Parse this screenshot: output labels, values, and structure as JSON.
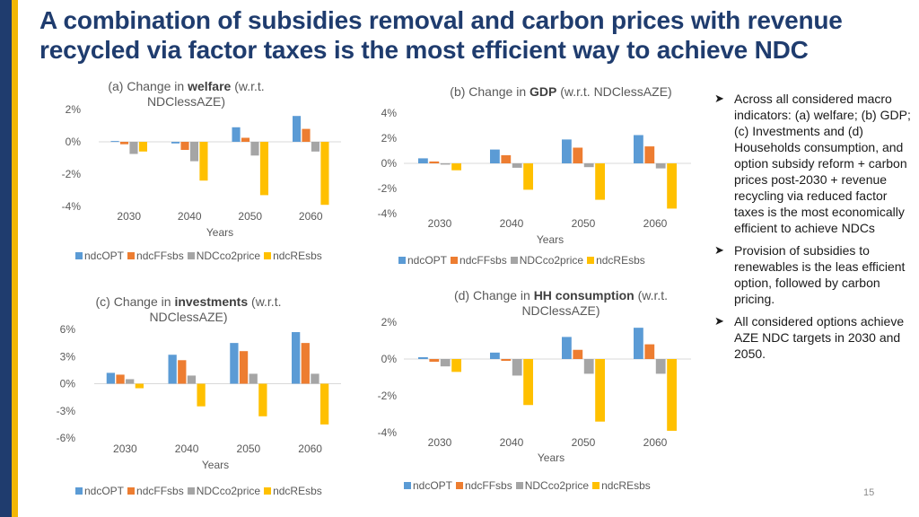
{
  "title": "A combination of subsidies removal and carbon prices with revenue recycled via factor taxes is the most efficient way to achieve NDC",
  "series_colors": {
    "ndcOPT": "#5b9bd5",
    "ndcFFsbs": "#ed7d31",
    "NDCco2price": "#a5a5a5",
    "ndcREsbs": "#ffc000"
  },
  "chart_data": [
    {
      "type": "bar",
      "title_prefix": "(a) Change in ",
      "title_bold": "welfare",
      "title_suffix": " (w.r.t. NDClessAZE)",
      "xlabel": "Years",
      "ylabel": "",
      "ylim": [
        -4,
        2
      ],
      "yticks": [
        "2%",
        "0%",
        "-2%",
        "-4%"
      ],
      "categories": [
        "2030",
        "2040",
        "2050",
        "2060"
      ],
      "series": [
        {
          "name": "ndcOPT",
          "values": [
            0.05,
            -0.1,
            0.9,
            1.6
          ]
        },
        {
          "name": "ndcFFsbs",
          "values": [
            -0.15,
            -0.5,
            0.25,
            0.8
          ]
        },
        {
          "name": "NDCco2price",
          "values": [
            -0.75,
            -1.2,
            -0.85,
            -0.6
          ]
        },
        {
          "name": "ndcREsbs",
          "values": [
            -0.6,
            -2.4,
            -3.3,
            -3.9
          ]
        }
      ],
      "legend": [
        "ndcOPT",
        "ndcFFsbs",
        "NDCco2price",
        "ndcREsbs"
      ]
    },
    {
      "type": "bar",
      "title_prefix": "(b) Change in ",
      "title_bold": "GDP",
      "title_suffix": " (w.r.t. NDClessAZE)",
      "xlabel": "Years",
      "ylabel": "",
      "ylim": [
        -4,
        4
      ],
      "yticks": [
        "4%",
        "2%",
        "0%",
        "-2%",
        "-4%"
      ],
      "categories": [
        "2030",
        "2040",
        "2050",
        "2060"
      ],
      "series": [
        {
          "name": "ndcOPT",
          "values": [
            0.4,
            1.1,
            1.9,
            2.25
          ]
        },
        {
          "name": "ndcFFsbs",
          "values": [
            0.15,
            0.65,
            1.25,
            1.35
          ]
        },
        {
          "name": "NDCco2price",
          "values": [
            -0.1,
            -0.35,
            -0.3,
            -0.4
          ]
        },
        {
          "name": "ndcREsbs",
          "values": [
            -0.55,
            -2.1,
            -2.9,
            -3.6
          ]
        }
      ],
      "legend": [
        "ndcOPT",
        "ndcFFsbs",
        "NDCco2price",
        "ndcREsbs"
      ]
    },
    {
      "type": "bar",
      "title_prefix": "(c) Change in ",
      "title_bold": "investments",
      "title_suffix": " (w.r.t. NDClessAZE)",
      "xlabel": "Years",
      "ylabel": "",
      "ylim": [
        -6,
        6
      ],
      "yticks": [
        "6%",
        "3%",
        "0%",
        "-3%",
        "-6%"
      ],
      "categories": [
        "2030",
        "2040",
        "2050",
        "2060"
      ],
      "series": [
        {
          "name": "ndcOPT",
          "values": [
            1.2,
            3.2,
            4.5,
            5.7
          ]
        },
        {
          "name": "ndcFFsbs",
          "values": [
            1.0,
            2.6,
            3.6,
            4.5
          ]
        },
        {
          "name": "NDCco2price",
          "values": [
            0.5,
            0.9,
            1.1,
            1.1
          ]
        },
        {
          "name": "ndcREsbs",
          "values": [
            -0.5,
            -2.5,
            -3.6,
            -4.5
          ]
        }
      ],
      "legend": [
        "ndcOPT",
        "ndcFFsbs",
        "NDCco2price",
        "ndcREsbs"
      ]
    },
    {
      "type": "bar",
      "title_prefix": "(d) Change in ",
      "title_bold": "HH consumption",
      "title_suffix": " (w.r.t. NDClessAZE)",
      "xlabel": "Years",
      "ylabel": "",
      "ylim": [
        -4,
        2
      ],
      "yticks": [
        "2%",
        "0%",
        "-2%",
        "-4%"
      ],
      "categories": [
        "2030",
        "2040",
        "2050",
        "2060"
      ],
      "series": [
        {
          "name": "ndcOPT",
          "values": [
            0.1,
            0.35,
            1.2,
            1.7
          ]
        },
        {
          "name": "ndcFFsbs",
          "values": [
            -0.15,
            -0.1,
            0.5,
            0.8
          ]
        },
        {
          "name": "NDCco2price",
          "values": [
            -0.4,
            -0.9,
            -0.8,
            -0.8
          ]
        },
        {
          "name": "ndcREsbs",
          "values": [
            -0.7,
            -2.5,
            -3.4,
            -3.9
          ]
        }
      ],
      "legend": [
        "ndcOPT",
        "ndcFFsbs",
        "NDCco2price",
        "ndcREsbs"
      ]
    }
  ],
  "bullets": [
    "Across all considered macro indicators: (a) welfare; (b) GDP; (c) Investments and (d) Households consumption, and option subsidy reform + carbon prices post-2030 + revenue recycling via reduced factor taxes is the most economically efficient to achieve NDCs",
    "Provision of subsidies to renewables is the leas efficient option, followed by carbon pricing.",
    "All considered options achieve AZE NDC targets in 2030 and 2050."
  ],
  "bullet_icon": "arrow-bullet-icon",
  "page_number": "15"
}
